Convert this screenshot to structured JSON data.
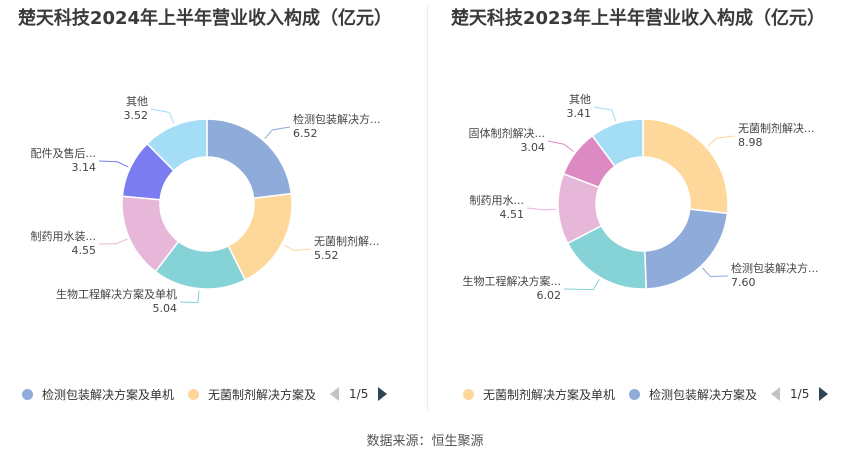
{
  "source": "数据来源：恒生聚源",
  "chart_data": [
    {
      "type": "pie",
      "title": "楚天科技2024年上半年营业收入构成（亿元）",
      "slices": [
        {
          "label": "检测包装解决方...",
          "value": 6.52,
          "color": "#8eabd9"
        },
        {
          "label": "无菌制剂解...",
          "value": 5.52,
          "color": "#fdd89a"
        },
        {
          "label": "生物工程解决方案及单机",
          "value": 5.04,
          "color": "#85d3d6"
        },
        {
          "label": "制药用水装...",
          "value": 4.55,
          "color": "#e6b7d8"
        },
        {
          "label": "配件及售后...",
          "value": 3.14,
          "color": "#7b7cf0"
        },
        {
          "label": "其他",
          "value": 3.52,
          "color": "#a3ddf6"
        }
      ],
      "legend": {
        "items": [
          {
            "label": "检测包装解决方案及单机",
            "color": "#8eabd9"
          },
          {
            "label": "无菌制剂解决方案及",
            "color": "#fdd89a"
          }
        ],
        "page": "1/5"
      }
    },
    {
      "type": "pie",
      "title": "楚天科技2023年上半年营业收入构成（亿元）",
      "slices": [
        {
          "label": "无菌制剂解决...",
          "value": 8.98,
          "color": "#fdd89a"
        },
        {
          "label": "检测包装解决方...",
          "value": 7.6,
          "color": "#8eabd9"
        },
        {
          "label": "生物工程解决方案...",
          "value": 6.02,
          "color": "#85d3d6"
        },
        {
          "label": "制药用水...",
          "value": 4.51,
          "color": "#e6b7d8"
        },
        {
          "label": "固体制剂解决...",
          "value": 3.04,
          "color": "#dc8ac1"
        },
        {
          "label": "其他",
          "value": 3.41,
          "color": "#a3ddf6"
        }
      ],
      "legend": {
        "items": [
          {
            "label": "无菌制剂解决方案及单机",
            "color": "#fdd89a"
          },
          {
            "label": "检测包装解决方案及",
            "color": "#8eabd9"
          }
        ],
        "page": "1/5"
      }
    }
  ]
}
